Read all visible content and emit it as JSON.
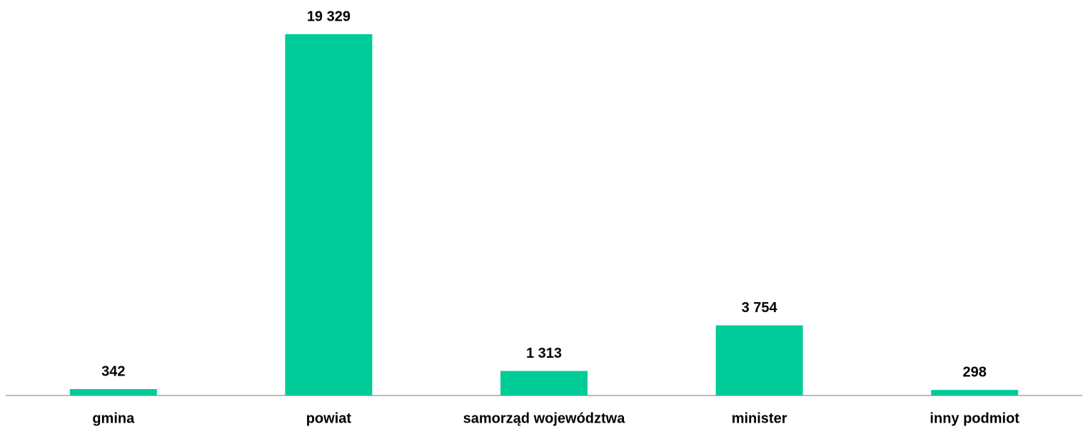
{
  "chart_data": {
    "type": "bar",
    "categories": [
      "gmina",
      "powiat",
      "samorząd województwa",
      "minister",
      "inny podmiot"
    ],
    "values": [
      342,
      19329,
      1313,
      3754,
      298
    ],
    "value_labels": [
      "342",
      "19 329",
      "1 313",
      "3 754",
      "298"
    ],
    "color": "#00cc99"
  }
}
